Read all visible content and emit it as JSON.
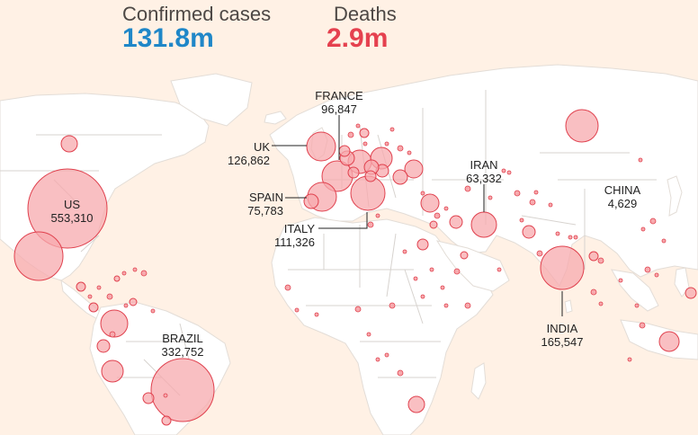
{
  "header": {
    "confirmed_label": "Confirmed cases",
    "confirmed_value": "131.8m",
    "deaths_label": "Deaths",
    "deaths_value": "2.9m"
  },
  "colors": {
    "background": "#fff1e5",
    "land": "#ffffff",
    "borders": "#d7d3cf",
    "bubble_fill": "#f7a9ad",
    "bubble_stroke": "#e0414e",
    "confirmed_accent": "#1f87c8",
    "deaths_accent": "#e5414f"
  },
  "labels": {
    "us": {
      "name": "US",
      "value": "553,310"
    },
    "brazil": {
      "name": "BRAZIL",
      "value": "332,752"
    },
    "uk": {
      "name": "UK",
      "value": "126,862"
    },
    "france": {
      "name": "FRANCE",
      "value": "96,847"
    },
    "spain": {
      "name": "SPAIN",
      "value": "75,783"
    },
    "italy": {
      "name": "ITALY",
      "value": "111,326"
    },
    "iran": {
      "name": "IRAN",
      "value": "63,332"
    },
    "china": {
      "name": "CHINA",
      "value": "4,629"
    },
    "india": {
      "name": "INDIA",
      "value": "165,547"
    }
  }
}
